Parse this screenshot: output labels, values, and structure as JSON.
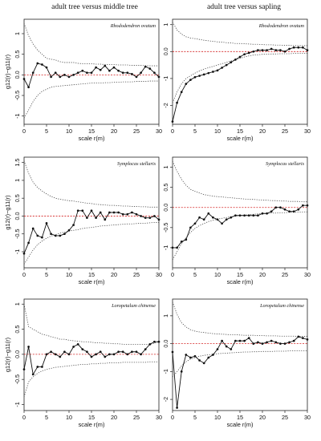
{
  "column_titles": [
    "adult tree versus middle tree",
    "adult tree versus sapling"
  ],
  "colors": {
    "observed": "#111111",
    "envelope": "#444444",
    "reference": "#d42020"
  },
  "chart_data": [
    {
      "type": "line",
      "annotation": "Rhododendron ovatum",
      "xlabel": "scale r(m)",
      "ylabel": "g12(r)−g11(r)",
      "xlim": [
        0,
        30
      ],
      "ylim": [
        -1.2,
        1.35
      ],
      "xticks": [
        0,
        5,
        10,
        15,
        20,
        25,
        30
      ],
      "yticks": [
        -1.0,
        -0.5,
        0.0,
        0.5,
        1.0
      ],
      "x": [
        0,
        1,
        2,
        3,
        4,
        5,
        6,
        7,
        8,
        9,
        10,
        11,
        12,
        13,
        14,
        15,
        16,
        17,
        18,
        19,
        20,
        21,
        22,
        23,
        24,
        25,
        26,
        27,
        28,
        29,
        30
      ],
      "observed": [
        -0.1,
        -0.3,
        0.05,
        0.28,
        0.25,
        0.18,
        -0.05,
        0.05,
        -0.05,
        0.0,
        -0.05,
        0.0,
        0.05,
        0.1,
        0.05,
        0.05,
        0.18,
        0.12,
        0.22,
        0.1,
        0.18,
        0.1,
        0.05,
        0.05,
        0.02,
        -0.05,
        0.05,
        0.2,
        0.15,
        0.05,
        -0.05
      ],
      "upper": [
        1.25,
        0.95,
        0.75,
        0.6,
        0.5,
        0.4,
        0.38,
        0.36,
        0.32,
        0.3,
        0.3,
        0.3,
        0.28,
        0.27,
        0.27,
        0.27,
        0.26,
        0.26,
        0.25,
        0.25,
        0.25,
        0.24,
        0.24,
        0.24,
        0.23,
        0.23,
        0.23,
        0.22,
        0.22,
        0.22,
        0.22
      ],
      "lower": [
        -1.05,
        -0.85,
        -0.65,
        -0.5,
        -0.4,
        -0.35,
        -0.3,
        -0.28,
        -0.27,
        -0.26,
        -0.25,
        -0.24,
        -0.23,
        -0.22,
        -0.21,
        -0.2,
        -0.2,
        -0.2,
        -0.19,
        -0.19,
        -0.18,
        -0.18,
        -0.17,
        -0.17,
        -0.17,
        -0.16,
        -0.16,
        -0.16,
        -0.15,
        -0.15,
        -0.15
      ]
    },
    {
      "type": "line",
      "annotation": "Rhododendron ovatum",
      "xlabel": "scale r(m)",
      "ylabel": "",
      "xlim": [
        0,
        30
      ],
      "ylim": [
        -2.7,
        1.2
      ],
      "xticks": [
        0,
        5,
        10,
        15,
        20,
        25,
        30
      ],
      "yticks": [
        -2,
        -1,
        0,
        1
      ],
      "x": [
        0,
        1,
        2,
        3,
        4,
        5,
        6,
        7,
        8,
        9,
        10,
        11,
        12,
        13,
        14,
        15,
        16,
        17,
        18,
        19,
        20,
        21,
        22,
        23,
        24,
        25,
        26,
        27,
        28,
        29,
        30
      ],
      "observed": [
        -2.6,
        -1.9,
        -1.5,
        -1.2,
        -1.05,
        -0.95,
        -0.9,
        -0.85,
        -0.8,
        -0.75,
        -0.7,
        -0.6,
        -0.5,
        -0.4,
        -0.3,
        -0.2,
        -0.1,
        -0.05,
        0.0,
        0.05,
        0.05,
        0.05,
        0.1,
        0.05,
        0.05,
        0.0,
        0.1,
        0.15,
        0.15,
        0.15,
        0.05
      ],
      "upper": [
        1.1,
        0.8,
        0.65,
        0.55,
        0.5,
        0.48,
        0.45,
        0.42,
        0.4,
        0.38,
        0.36,
        0.35,
        0.33,
        0.32,
        0.3,
        0.3,
        0.29,
        0.28,
        0.27,
        0.27,
        0.26,
        0.25,
        0.25,
        0.24,
        0.24,
        0.23,
        0.23,
        0.22,
        0.22,
        0.22,
        0.22
      ],
      "lower": [
        -1.9,
        -1.5,
        -1.2,
        -1.0,
        -0.9,
        -0.8,
        -0.72,
        -0.65,
        -0.6,
        -0.55,
        -0.5,
        -0.45,
        -0.4,
        -0.35,
        -0.3,
        -0.25,
        -0.2,
        -0.16,
        -0.13,
        -0.12,
        -0.1,
        -0.1,
        -0.09,
        -0.09,
        -0.08,
        -0.08,
        -0.08,
        -0.07,
        -0.07,
        -0.07,
        -0.07
      ]
    },
    {
      "type": "line",
      "annotation": "Symplocas stellaris",
      "xlabel": "scale r(m)",
      "ylabel": "g12(r)−g11(r)",
      "xlim": [
        0,
        30
      ],
      "ylim": [
        -1.45,
        1.65
      ],
      "xticks": [
        0,
        5,
        10,
        15,
        20,
        25,
        30
      ],
      "yticks": [
        -1.0,
        -0.5,
        0.0,
        0.5,
        1.0,
        1.5
      ],
      "x": [
        0,
        1,
        2,
        3,
        4,
        5,
        6,
        7,
        8,
        9,
        10,
        11,
        12,
        13,
        14,
        15,
        16,
        17,
        18,
        19,
        20,
        21,
        22,
        23,
        24,
        25,
        26,
        27,
        28,
        29,
        30
      ],
      "observed": [
        -1.05,
        -0.75,
        -0.35,
        -0.55,
        -0.6,
        -0.2,
        -0.5,
        -0.55,
        -0.55,
        -0.5,
        -0.4,
        -0.25,
        0.15,
        0.15,
        -0.05,
        0.15,
        -0.05,
        0.1,
        -0.1,
        0.1,
        0.1,
        0.1,
        0.05,
        0.05,
        0.1,
        0.05,
        0.0,
        -0.05,
        -0.05,
        0.0,
        -0.1
      ],
      "upper": [
        1.55,
        1.2,
        0.95,
        0.8,
        0.7,
        0.62,
        0.55,
        0.5,
        0.47,
        0.45,
        0.43,
        0.42,
        0.4,
        0.38,
        0.36,
        0.35,
        0.33,
        0.32,
        0.31,
        0.3,
        0.3,
        0.29,
        0.28,
        0.28,
        0.27,
        0.27,
        0.26,
        0.26,
        0.25,
        0.25,
        0.25
      ],
      "lower": [
        -1.35,
        -1.15,
        -0.95,
        -0.8,
        -0.7,
        -0.62,
        -0.56,
        -0.52,
        -0.48,
        -0.45,
        -0.42,
        -0.4,
        -0.38,
        -0.35,
        -0.33,
        -0.32,
        -0.3,
        -0.28,
        -0.27,
        -0.26,
        -0.25,
        -0.24,
        -0.23,
        -0.22,
        -0.22,
        -0.21,
        -0.2,
        -0.2,
        -0.19,
        -0.18,
        -0.18
      ]
    },
    {
      "type": "line",
      "annotation": "Symplocas stellaris",
      "xlabel": "scale r(m)",
      "ylabel": "",
      "xlim": [
        0,
        30
      ],
      "ylim": [
        -1.5,
        1.25
      ],
      "xticks": [
        0,
        5,
        10,
        15,
        20,
        25,
        30
      ],
      "yticks": [
        -1.0,
        -0.5,
        0.0,
        0.5,
        1.0
      ],
      "x": [
        0,
        1,
        2,
        3,
        4,
        5,
        6,
        7,
        8,
        9,
        10,
        11,
        12,
        13,
        14,
        15,
        16,
        17,
        18,
        19,
        20,
        21,
        22,
        23,
        24,
        25,
        26,
        27,
        28,
        29,
        30
      ],
      "observed": [
        -1.0,
        -1.0,
        -0.85,
        -0.8,
        -0.5,
        -0.4,
        -0.25,
        -0.3,
        -0.15,
        -0.25,
        -0.3,
        -0.4,
        -0.3,
        -0.25,
        -0.2,
        -0.2,
        -0.2,
        -0.2,
        -0.2,
        -0.2,
        -0.15,
        -0.15,
        -0.1,
        0.0,
        0.0,
        -0.05,
        -0.1,
        -0.1,
        -0.05,
        0.05,
        0.05
      ],
      "upper": [
        1.15,
        0.9,
        0.7,
        0.55,
        0.45,
        0.4,
        0.36,
        0.32,
        0.3,
        0.28,
        0.27,
        0.26,
        0.25,
        0.24,
        0.23,
        0.22,
        0.21,
        0.2,
        0.2,
        0.19,
        0.18,
        0.18,
        0.17,
        0.17,
        0.16,
        0.16,
        0.15,
        0.15,
        0.15,
        0.14,
        0.14
      ],
      "lower": [
        -1.3,
        -1.1,
        -0.9,
        -0.75,
        -0.62,
        -0.52,
        -0.45,
        -0.4,
        -0.35,
        -0.32,
        -0.29,
        -0.27,
        -0.25,
        -0.23,
        -0.21,
        -0.2,
        -0.19,
        -0.18,
        -0.17,
        -0.16,
        -0.15,
        -0.15,
        -0.14,
        -0.14,
        -0.13,
        -0.13,
        -0.12,
        -0.12,
        -0.12,
        -0.11,
        -0.11
      ]
    },
    {
      "type": "line",
      "annotation": "Loropetalum chinense",
      "xlabel": "scale r(m)",
      "ylabel": "g12(r)−g11(r)",
      "xlim": [
        0,
        30
      ],
      "ylim": [
        -1.12,
        1.1
      ],
      "xticks": [
        0,
        5,
        10,
        15,
        20,
        25,
        30
      ],
      "yticks": [
        -1.0,
        -0.5,
        0.0,
        0.5,
        1.0
      ],
      "x": [
        0,
        1,
        2,
        3,
        4,
        5,
        6,
        7,
        8,
        9,
        10,
        11,
        12,
        13,
        14,
        15,
        16,
        17,
        18,
        19,
        20,
        21,
        22,
        23,
        24,
        25,
        26,
        27,
        28,
        29,
        30
      ],
      "observed": [
        -0.3,
        0.15,
        -0.4,
        -0.25,
        -0.25,
        0.0,
        0.05,
        0.0,
        -0.05,
        0.05,
        0.0,
        0.15,
        0.2,
        0.1,
        0.05,
        -0.05,
        0.0,
        0.05,
        -0.05,
        0.0,
        0.0,
        0.05,
        0.05,
        0.0,
        0.05,
        0.05,
        0.0,
        0.1,
        0.2,
        0.25,
        0.25
      ],
      "upper": [
        1.0,
        0.55,
        0.5,
        0.45,
        0.4,
        0.38,
        0.35,
        0.33,
        0.3,
        0.3,
        0.28,
        0.27,
        0.26,
        0.25,
        0.25,
        0.24,
        0.23,
        0.23,
        0.22,
        0.22,
        0.21,
        0.21,
        0.2,
        0.2,
        0.2,
        0.2,
        0.2,
        0.2,
        0.2,
        0.22,
        0.25
      ],
      "lower": [
        -0.85,
        -0.55,
        -0.45,
        -0.38,
        -0.33,
        -0.3,
        -0.28,
        -0.26,
        -0.25,
        -0.24,
        -0.23,
        -0.22,
        -0.21,
        -0.2,
        -0.2,
        -0.19,
        -0.19,
        -0.18,
        -0.18,
        -0.17,
        -0.17,
        -0.17,
        -0.16,
        -0.16,
        -0.16,
        -0.16,
        -0.16,
        -0.16,
        -0.15,
        -0.15,
        -0.15
      ]
    },
    {
      "type": "line",
      "annotation": "Loropetalum chinense",
      "xlabel": "scale r(m)",
      "ylabel": "",
      "xlim": [
        0,
        30
      ],
      "ylim": [
        -2.4,
        1.6
      ],
      "xticks": [
        0,
        5,
        10,
        15,
        20,
        25,
        30
      ],
      "yticks": [
        -2,
        -1,
        0,
        1
      ],
      "x": [
        0,
        1,
        2,
        3,
        4,
        5,
        6,
        7,
        8,
        9,
        10,
        11,
        12,
        13,
        14,
        15,
        16,
        17,
        18,
        19,
        20,
        21,
        22,
        23,
        24,
        25,
        26,
        27,
        28,
        29,
        30
      ],
      "observed": [
        -0.3,
        -2.3,
        -1.0,
        -0.4,
        -0.5,
        -0.45,
        -0.6,
        -0.7,
        -0.5,
        -0.4,
        -0.2,
        0.1,
        -0.1,
        -0.2,
        0.1,
        0.1,
        0.1,
        0.2,
        0.0,
        0.05,
        0.0,
        0.05,
        0.1,
        0.05,
        0.0,
        0.0,
        0.05,
        0.1,
        0.25,
        0.2,
        0.15
      ],
      "upper": [
        1.5,
        1.05,
        0.75,
        0.6,
        0.5,
        0.45,
        0.42,
        0.4,
        0.38,
        0.36,
        0.35,
        0.34,
        0.33,
        0.32,
        0.32,
        0.31,
        0.3,
        0.3,
        0.3,
        0.29,
        0.29,
        0.28,
        0.28,
        0.28,
        0.27,
        0.27,
        0.27,
        0.27,
        0.26,
        0.26,
        0.26
      ],
      "lower": [
        -1.2,
        -1.0,
        -0.8,
        -0.65,
        -0.55,
        -0.5,
        -0.45,
        -0.42,
        -0.4,
        -0.38,
        -0.36,
        -0.35,
        -0.34,
        -0.33,
        -0.32,
        -0.31,
        -0.3,
        -0.3,
        -0.29,
        -0.29,
        -0.28,
        -0.28,
        -0.28,
        -0.27,
        -0.27,
        -0.27,
        -0.26,
        -0.26,
        -0.26,
        -0.26,
        -0.26
      ]
    }
  ]
}
